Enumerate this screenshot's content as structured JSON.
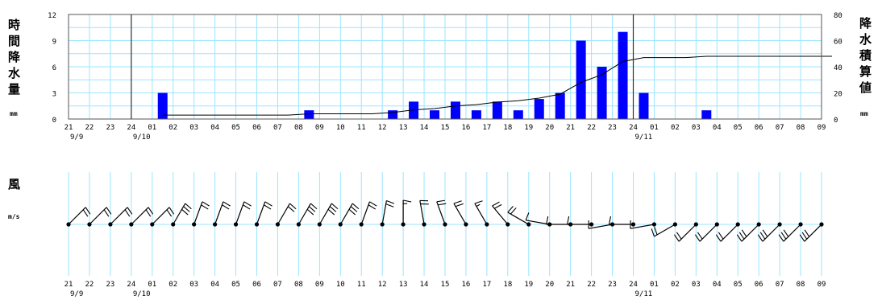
{
  "chart_data": [
    {
      "type": "bar",
      "title": "",
      "left_axis": {
        "label_chars": [
          "時",
          "間",
          "降",
          "水",
          "量"
        ],
        "unit": "mm",
        "ylim": [
          0,
          12
        ],
        "ticks": [
          "0",
          "3",
          "6",
          "9",
          "12"
        ]
      },
      "right_axis": {
        "label_chars": [
          "降",
          "水",
          "積",
          "算",
          "値"
        ],
        "unit": "mm",
        "ylim": [
          0,
          80
        ],
        "ticks": [
          "0",
          "20",
          "40",
          "60",
          "80"
        ]
      },
      "categories": [
        "21",
        "22",
        "23",
        "24",
        "01",
        "02",
        "03",
        "04",
        "05",
        "06",
        "07",
        "08",
        "09",
        "10",
        "11",
        "12",
        "13",
        "14",
        "15",
        "16",
        "17",
        "18",
        "19",
        "20",
        "21",
        "22",
        "23",
        "24",
        "01",
        "02",
        "03",
        "04",
        "05",
        "06",
        "07",
        "08",
        "09"
      ],
      "date_labels": [
        "9/9",
        "9/10",
        "9/11"
      ],
      "grid": true,
      "series": [
        {
          "chart_type": "bar",
          "axis": "left",
          "color": "#0000ff",
          "values": [
            null,
            null,
            null,
            null,
            3,
            0,
            0,
            0,
            0,
            0,
            0,
            1,
            0,
            0,
            0,
            1,
            2,
            1,
            2,
            1,
            2,
            1,
            2.3,
            3,
            9,
            6,
            10,
            3,
            0,
            0,
            1,
            0,
            0,
            0,
            0,
            0,
            0
          ]
        },
        {
          "chart_type": "line",
          "axis": "right",
          "color": "#000000",
          "values": [
            null,
            null,
            null,
            null,
            3,
            3,
            3,
            3,
            3,
            3,
            3,
            4,
            4,
            4,
            4,
            5,
            7,
            8,
            10,
            11,
            13,
            14,
            16,
            19,
            28,
            34,
            44,
            47,
            47,
            47,
            48,
            48,
            48,
            48,
            48,
            48,
            48
          ]
        }
      ]
    },
    {
      "type": "wind_barbs",
      "label": "風",
      "unit": "m/s",
      "categories": [
        "21",
        "22",
        "23",
        "24",
        "01",
        "02",
        "03",
        "04",
        "05",
        "06",
        "07",
        "08",
        "09",
        "10",
        "11",
        "12",
        "13",
        "14",
        "15",
        "16",
        "17",
        "18",
        "19",
        "20",
        "21",
        "22",
        "23",
        "24",
        "01",
        "02",
        "03",
        "04",
        "05",
        "06",
        "07",
        "08",
        "09"
      ],
      "date_labels": [
        "9/9",
        "9/10",
        "9/11"
      ],
      "direction_deg": [
        45,
        45,
        45,
        45,
        45,
        30,
        20,
        20,
        20,
        20,
        30,
        30,
        30,
        30,
        20,
        10,
        0,
        350,
        340,
        330,
        330,
        320,
        300,
        280,
        270,
        270,
        260,
        270,
        260,
        240,
        225,
        225,
        225,
        225,
        225,
        225,
        225
      ],
      "speed_ms": [
        12,
        12,
        12,
        12,
        12,
        15,
        10,
        10,
        10,
        10,
        12,
        15,
        15,
        15,
        12,
        12,
        8,
        10,
        10,
        10,
        8,
        10,
        10,
        5,
        5,
        5,
        5,
        5,
        5,
        10,
        12,
        12,
        12,
        15,
        15,
        15,
        15
      ]
    }
  ]
}
